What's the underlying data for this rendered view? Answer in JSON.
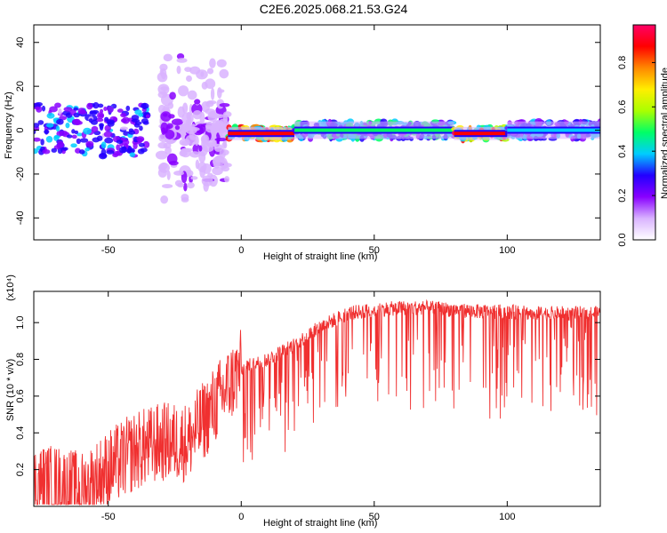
{
  "title": "C2E6.2025.068.21.53.G24",
  "chart_data": [
    {
      "type": "heatmap",
      "xlabel": "Height of straight line (km)",
      "ylabel": "Frequency (Hz)",
      "xlim": [
        -78,
        135
      ],
      "ylim": [
        -50,
        48
      ],
      "x_ticks": [
        -50,
        0,
        50,
        100
      ],
      "y_ticks": [
        -40,
        -20,
        0,
        20,
        40
      ],
      "colorbar": {
        "label": "Normalized spectral amplitude",
        "range": [
          0,
          0.97
        ],
        "ticks": [
          "0.0",
          "0.2",
          "0.4",
          "0.6",
          "0.8"
        ],
        "colormap": [
          "#ffffff",
          "#d9b3ff",
          "#8800ff",
          "#2200ff",
          "#00ccff",
          "#00ff66",
          "#aaff00",
          "#ffee00",
          "#ff8800",
          "#ff0000",
          "#ff0066"
        ]
      },
      "regions": [
        {
          "x": [
            -78,
            -35
          ],
          "f_center": 0,
          "f_spread": 12,
          "amplitude": 0.35
        },
        {
          "x": [
            -30,
            -5
          ],
          "f_center": 0,
          "f_spread": 38,
          "amplitude": 0.15
        },
        {
          "x": [
            -5,
            20
          ],
          "f_center": -1.5,
          "f_spread": 3,
          "amplitude": 0.85
        },
        {
          "x": [
            20,
            80
          ],
          "f_center": 0,
          "f_spread": 4,
          "amplitude": 0.45
        },
        {
          "x": [
            80,
            100
          ],
          "f_center": -1.5,
          "f_spread": 3,
          "amplitude": 0.9
        },
        {
          "x": [
            100,
            135
          ],
          "f_center": 0,
          "f_spread": 4,
          "amplitude": 0.4
        }
      ]
    },
    {
      "type": "line",
      "xlabel": "Height of straight line (km)",
      "ylabel": "SNR (10 * v/v)",
      "y_multiplier": "(x10⁴)",
      "xlim": [
        -78,
        135
      ],
      "ylim": [
        0,
        1.17
      ],
      "x_ticks": [
        -50,
        0,
        50,
        100
      ],
      "y_ticks": [
        "0.2",
        "0.4",
        "0.6",
        "0.8",
        "1.0"
      ],
      "series": [
        {
          "color": "#f03030",
          "x": [
            -78,
            -70,
            -60,
            -50,
            -40,
            -30,
            -20,
            -10,
            0,
            10,
            20,
            30,
            40,
            50,
            60,
            70,
            80,
            90,
            100,
            110,
            120,
            135
          ],
          "y": [
            0.12,
            0.12,
            0.08,
            0.2,
            0.3,
            0.35,
            0.35,
            0.55,
            0.75,
            0.8,
            0.88,
            0.98,
            1.05,
            1.07,
            1.08,
            1.08,
            1.07,
            1.06,
            1.06,
            1.05,
            1.05,
            1.05
          ]
        }
      ]
    }
  ]
}
